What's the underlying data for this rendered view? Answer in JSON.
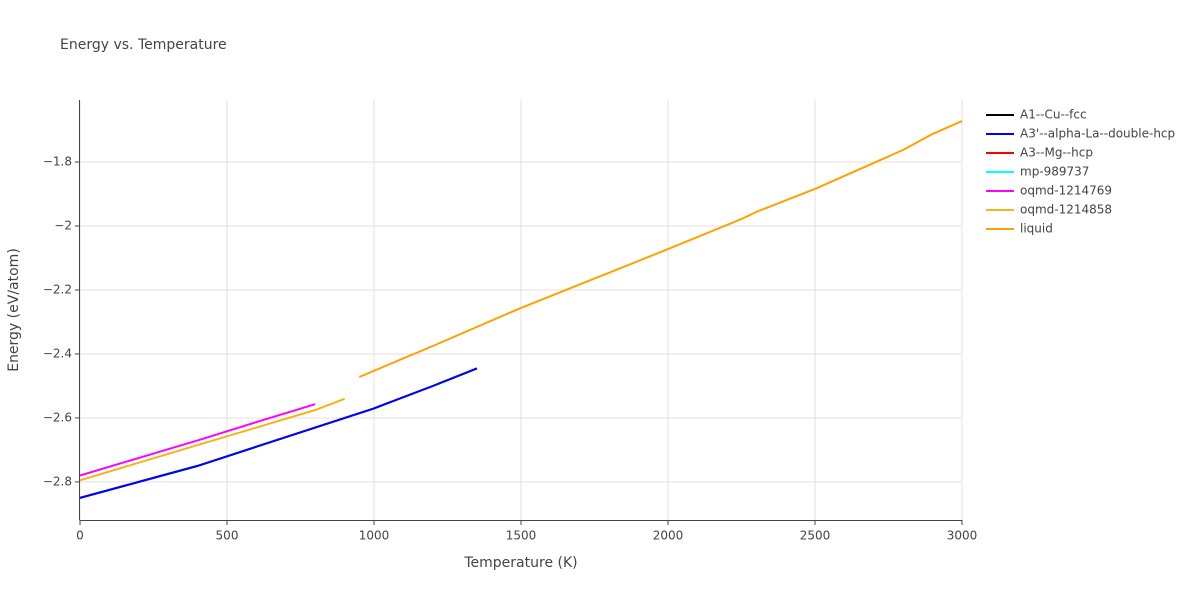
{
  "chart_data": {
    "type": "line",
    "title": "Energy vs. Temperature",
    "x_label": "Temperature (K)",
    "y_label": "Energy (eV/atom)",
    "xlim": [
      0,
      3000
    ],
    "xticks": [
      0,
      500,
      1000,
      1500,
      2000,
      2500,
      3000
    ],
    "ylim": [
      -2.919,
      -1.606
    ],
    "yticks": [
      {
        "value": -2.8,
        "label": "−2.8"
      },
      {
        "value": -2.6,
        "label": "−2.6"
      },
      {
        "value": -2.4,
        "label": "−2.4"
      },
      {
        "value": -2.2,
        "label": "−2.2"
      },
      {
        "value": -2,
        "label": "−2"
      },
      {
        "value": -1.8,
        "label": "−1.8"
      }
    ],
    "grid": true,
    "legend": "right",
    "series": [
      {
        "name": "A1--Cu--fcc",
        "color": "#000000",
        "x": [
          0,
          200,
          400,
          600,
          800,
          1000,
          1200,
          1350
        ],
        "values": [
          -2.85,
          -2.8,
          -2.75,
          -2.69,
          -2.63,
          -2.57,
          -2.5,
          -2.445
        ]
      },
      {
        "name": "A3'--alpha-La--double-hcp",
        "color": "#0000ff",
        "x": [
          0,
          200,
          400,
          600,
          800,
          1000,
          1200,
          1350
        ],
        "values": [
          -2.85,
          -2.8,
          -2.75,
          -2.69,
          -2.63,
          -2.57,
          -2.5,
          -2.445
        ]
      },
      {
        "name": "A3--Mg--hcp",
        "color": "#ff0000",
        "x": [
          0,
          200,
          400,
          600,
          800,
          1000,
          1200,
          1350
        ],
        "values": [
          -2.85,
          -2.8,
          -2.75,
          -2.69,
          -2.63,
          -2.57,
          -2.5,
          -2.445
        ]
      },
      {
        "name": "mp-989737",
        "color": "#00ffff",
        "x": [
          0,
          200,
          400,
          600,
          800,
          1000,
          1200,
          1350
        ],
        "values": [
          -2.85,
          -2.8,
          -2.75,
          -2.69,
          -2.63,
          -2.57,
          -2.5,
          -2.445
        ]
      },
      {
        "name": "oqmd-1214769",
        "color": "#ff00ff",
        "x": [
          0,
          200,
          400,
          600,
          800
        ],
        "values": [
          -2.78,
          -2.725,
          -2.67,
          -2.613,
          -2.557
        ]
      },
      {
        "name": "oqmd-1214858",
        "color": "#f5b316",
        "x": [
          0,
          200,
          400,
          600,
          800,
          900
        ],
        "values": [
          -2.795,
          -2.74,
          -2.685,
          -2.63,
          -2.575,
          -2.54
        ]
      },
      {
        "name": "liquid",
        "color": "#ffa000",
        "x": [
          950,
          1200,
          1500,
          2000,
          2250,
          2300,
          2500,
          2800,
          2900,
          3000
        ],
        "values": [
          -2.472,
          -2.375,
          -2.256,
          -2.072,
          -1.978,
          -1.956,
          -1.884,
          -1.762,
          -1.712,
          -1.672
        ]
      }
    ]
  }
}
